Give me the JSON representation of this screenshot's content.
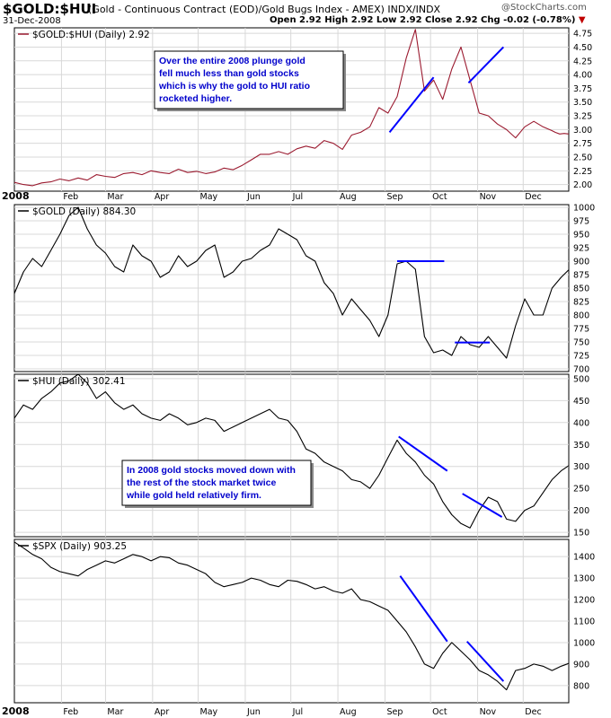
{
  "header": {
    "symbol": "$GOLD:$HUI",
    "description": "(Gold - Continuous Contract (EOD)/Gold Bugs Index - AMEX) INDX/INDX",
    "date": "31-Dec-2008",
    "logo": "@StockCharts.com",
    "quote": "Open 2.92 High 2.92 Low 2.92 Close 2.92 Chg -0.02 (-0.78%)",
    "quote_arrow": "▼"
  },
  "colors": {
    "ratio_line": "#9b1b30",
    "price_line": "#000000",
    "trend_line": "#0000ff",
    "annotation_text": "#0000cc",
    "grid": "#d8d8d8"
  },
  "x_axis": {
    "year_label": "2008",
    "months": [
      "Feb",
      "Mar",
      "Apr",
      "May",
      "Jun",
      "Jul",
      "Aug",
      "Sep",
      "Oct",
      "Nov",
      "Dec"
    ]
  },
  "chart_data": [
    {
      "type": "line",
      "panel_label": "$GOLD:$HUI (Daily) 2.92",
      "series_name": "$GOLD:$HUI",
      "y_ticks": [
        "2.00",
        "2.25",
        "2.50",
        "2.75",
        "3.00",
        "3.25",
        "3.50",
        "3.75",
        "4.00",
        "4.25",
        "4.50",
        "4.75"
      ],
      "ylim": [
        1.88,
        4.85
      ],
      "annotation": "Over the entire 2008 plunge gold fell much less than gold stocks which is why the gold to HUI ratio rocketed higher.",
      "x": [
        0,
        6,
        12,
        18,
        24,
        30,
        36,
        42,
        48,
        54,
        60,
        66,
        72,
        78,
        84,
        90,
        96,
        102,
        108,
        114,
        120,
        126,
        132,
        138,
        144,
        150,
        156,
        162,
        168,
        174,
        180,
        186,
        192,
        198,
        204,
        210,
        216,
        222,
        228,
        234,
        240,
        246,
        252,
        258,
        264,
        270,
        276,
        282,
        288,
        294,
        300,
        306,
        312,
        318,
        324,
        330,
        336,
        342,
        348,
        354,
        356,
        359,
        362,
        365
      ],
      "values": [
        2.04,
        2.0,
        1.98,
        2.03,
        2.05,
        2.1,
        2.07,
        2.12,
        2.08,
        2.18,
        2.15,
        2.13,
        2.2,
        2.22,
        2.18,
        2.25,
        2.22,
        2.2,
        2.28,
        2.22,
        2.24,
        2.2,
        2.23,
        2.3,
        2.27,
        2.35,
        2.45,
        2.55,
        2.55,
        2.6,
        2.55,
        2.65,
        2.7,
        2.66,
        2.8,
        2.75,
        2.64,
        2.9,
        2.95,
        3.05,
        3.4,
        3.3,
        3.6,
        4.3,
        4.82,
        3.7,
        3.9,
        3.55,
        4.1,
        4.5,
        3.9,
        3.3,
        3.25,
        3.1,
        3.0,
        2.85,
        3.05,
        3.15,
        3.05,
        2.98,
        2.95,
        2.92,
        2.93,
        2.92
      ],
      "trendlines": [
        {
          "x": [
            247,
            276
          ],
          "y": [
            2.95,
            3.95
          ]
        },
        {
          "x": [
            299,
            322
          ],
          "y": [
            3.85,
            4.5
          ]
        }
      ]
    },
    {
      "type": "line",
      "panel_label": "$GOLD (Daily) 884.30",
      "series_name": "$GOLD",
      "y_ticks": [
        "700",
        "725",
        "750",
        "775",
        "800",
        "825",
        "850",
        "875",
        "900",
        "925",
        "950",
        "975",
        "1000"
      ],
      "ylim": [
        695,
        1005
      ],
      "x": [
        0,
        6,
        12,
        18,
        24,
        30,
        36,
        42,
        48,
        54,
        60,
        66,
        72,
        78,
        84,
        90,
        96,
        102,
        108,
        114,
        120,
        126,
        132,
        138,
        144,
        150,
        156,
        162,
        168,
        174,
        180,
        186,
        192,
        198,
        204,
        210,
        216,
        222,
        228,
        234,
        240,
        246,
        252,
        258,
        264,
        270,
        276,
        282,
        288,
        294,
        300,
        306,
        312,
        318,
        324,
        330,
        336,
        342,
        348,
        354,
        360,
        365
      ],
      "values": [
        840,
        880,
        905,
        890,
        920,
        950,
        985,
        1000,
        960,
        930,
        915,
        890,
        880,
        930,
        910,
        900,
        870,
        880,
        910,
        890,
        900,
        920,
        930,
        870,
        880,
        900,
        905,
        920,
        930,
        960,
        950,
        940,
        910,
        900,
        860,
        840,
        800,
        830,
        810,
        790,
        760,
        800,
        895,
        900,
        885,
        760,
        730,
        735,
        725,
        760,
        745,
        740,
        760,
        740,
        720,
        780,
        830,
        800,
        800,
        850,
        870,
        884
      ],
      "trendlines": [
        {
          "x": [
            252,
            283
          ],
          "y": [
            900,
            900
          ]
        },
        {
          "x": [
            290,
            313
          ],
          "y": [
            749,
            749
          ]
        }
      ]
    },
    {
      "type": "line",
      "panel_label": "$HUI (Daily) 302.41",
      "series_name": "$HUI",
      "y_ticks": [
        "150",
        "200",
        "250",
        "300",
        "350",
        "400",
        "450",
        "500"
      ],
      "ylim": [
        140,
        510
      ],
      "annotation": "In 2008 gold stocks moved down with the rest of the stock market twice while gold held relatively firm.",
      "x": [
        0,
        6,
        12,
        18,
        24,
        30,
        36,
        42,
        48,
        54,
        60,
        66,
        72,
        78,
        84,
        90,
        96,
        102,
        108,
        114,
        120,
        126,
        132,
        138,
        144,
        150,
        156,
        162,
        168,
        174,
        180,
        186,
        192,
        198,
        204,
        210,
        216,
        222,
        228,
        234,
        240,
        246,
        252,
        258,
        264,
        270,
        276,
        282,
        288,
        294,
        300,
        306,
        312,
        318,
        324,
        330,
        336,
        342,
        348,
        354,
        360,
        365
      ],
      "values": [
        410,
        440,
        430,
        455,
        470,
        490,
        495,
        510,
        490,
        455,
        470,
        445,
        430,
        440,
        420,
        410,
        405,
        420,
        410,
        395,
        400,
        410,
        405,
        380,
        390,
        400,
        410,
        420,
        430,
        410,
        405,
        380,
        340,
        330,
        310,
        300,
        290,
        270,
        265,
        250,
        280,
        320,
        360,
        330,
        310,
        280,
        260,
        220,
        190,
        170,
        160,
        200,
        230,
        220,
        180,
        175,
        200,
        210,
        240,
        270,
        290,
        302
      ],
      "trendlines": [
        {
          "x": [
            253,
            285
          ],
          "y": [
            368,
            290
          ]
        },
        {
          "x": [
            295,
            321
          ],
          "y": [
            238,
            185
          ]
        }
      ]
    },
    {
      "type": "line",
      "panel_label": "$SPX (Daily) 903.25",
      "series_name": "$SPX",
      "y_ticks": [
        "800",
        "900",
        "1000",
        "1100",
        "1200",
        "1300",
        "1400"
      ],
      "ylim": [
        720,
        1480
      ],
      "x": [
        0,
        6,
        12,
        18,
        24,
        30,
        36,
        42,
        48,
        54,
        60,
        66,
        72,
        78,
        84,
        90,
        96,
        102,
        108,
        114,
        120,
        126,
        132,
        138,
        144,
        150,
        156,
        162,
        168,
        174,
        180,
        186,
        192,
        198,
        204,
        210,
        216,
        222,
        228,
        234,
        240,
        246,
        252,
        258,
        264,
        270,
        276,
        282,
        288,
        294,
        300,
        306,
        312,
        318,
        324,
        330,
        336,
        342,
        348,
        354,
        360,
        365
      ],
      "values": [
        1468,
        1440,
        1410,
        1390,
        1350,
        1330,
        1320,
        1310,
        1340,
        1360,
        1380,
        1370,
        1390,
        1410,
        1400,
        1380,
        1400,
        1395,
        1370,
        1360,
        1340,
        1320,
        1280,
        1260,
        1270,
        1280,
        1300,
        1290,
        1270,
        1260,
        1290,
        1285,
        1270,
        1250,
        1260,
        1240,
        1230,
        1250,
        1200,
        1190,
        1170,
        1150,
        1100,
        1050,
        980,
        900,
        880,
        950,
        1000,
        960,
        920,
        870,
        850,
        820,
        780,
        870,
        880,
        900,
        890,
        870,
        890,
        903
      ],
      "trendlines": [
        {
          "x": [
            254,
            285
          ],
          "y": [
            1310,
            1005
          ]
        },
        {
          "x": [
            298,
            322
          ],
          "y": [
            1005,
            820
          ]
        }
      ]
    }
  ]
}
